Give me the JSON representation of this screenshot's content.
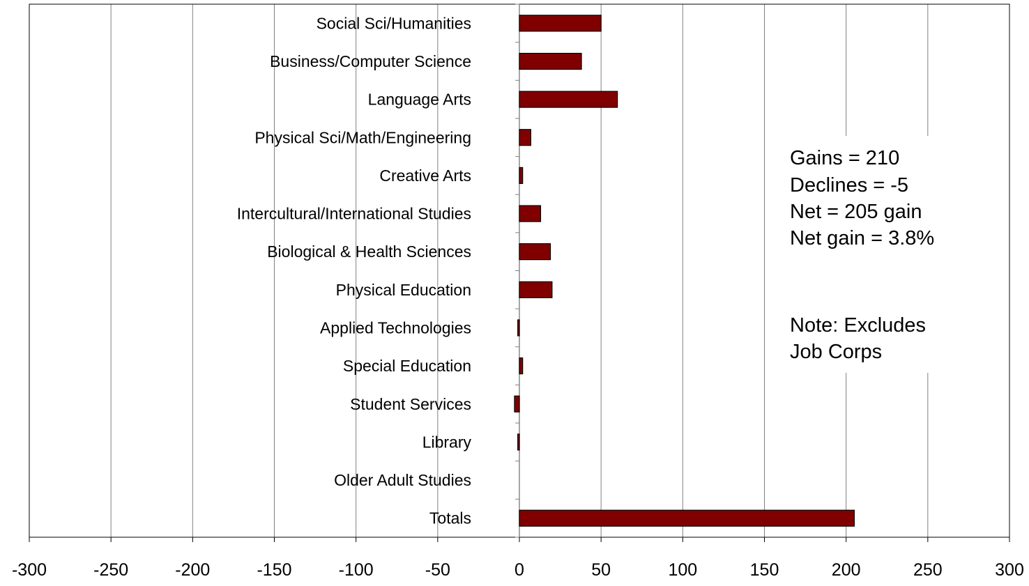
{
  "chart_data": {
    "type": "bar",
    "orientation": "horizontal",
    "categories": [
      "Social Sci/Humanities",
      "Business/Computer Science",
      "Language Arts",
      "Physical Sci/Math/Engineering",
      "Creative Arts",
      "Intercultural/International Studies",
      "Biological & Health Sciences",
      "Physical Education",
      "Applied Technologies",
      "Special Education",
      "Student Services",
      "Library",
      "Older Adult Studies",
      "Totals"
    ],
    "values": [
      50,
      38,
      60,
      7,
      2,
      13,
      19,
      20,
      -1,
      2,
      -3,
      -1,
      0,
      205
    ],
    "xlim": [
      -300,
      300
    ],
    "xticks": [
      "-300",
      "-250",
      "-200",
      "-150",
      "-100",
      "-50",
      "0",
      "50",
      "100",
      "150",
      "200",
      "250",
      "300"
    ],
    "xtick_values": [
      -300,
      -250,
      -200,
      -150,
      -100,
      -50,
      0,
      50,
      100,
      150,
      200,
      250,
      300
    ],
    "grid": "vertical",
    "bar_color": "#800000",
    "title": "",
    "xlabel": "",
    "ylabel": "",
    "annotations": [
      "Gains = 210",
      "Declines = -5",
      "Net = 205 gain",
      "Net gain = 3.8%",
      "Note: Excludes",
      "Job Corps"
    ]
  }
}
